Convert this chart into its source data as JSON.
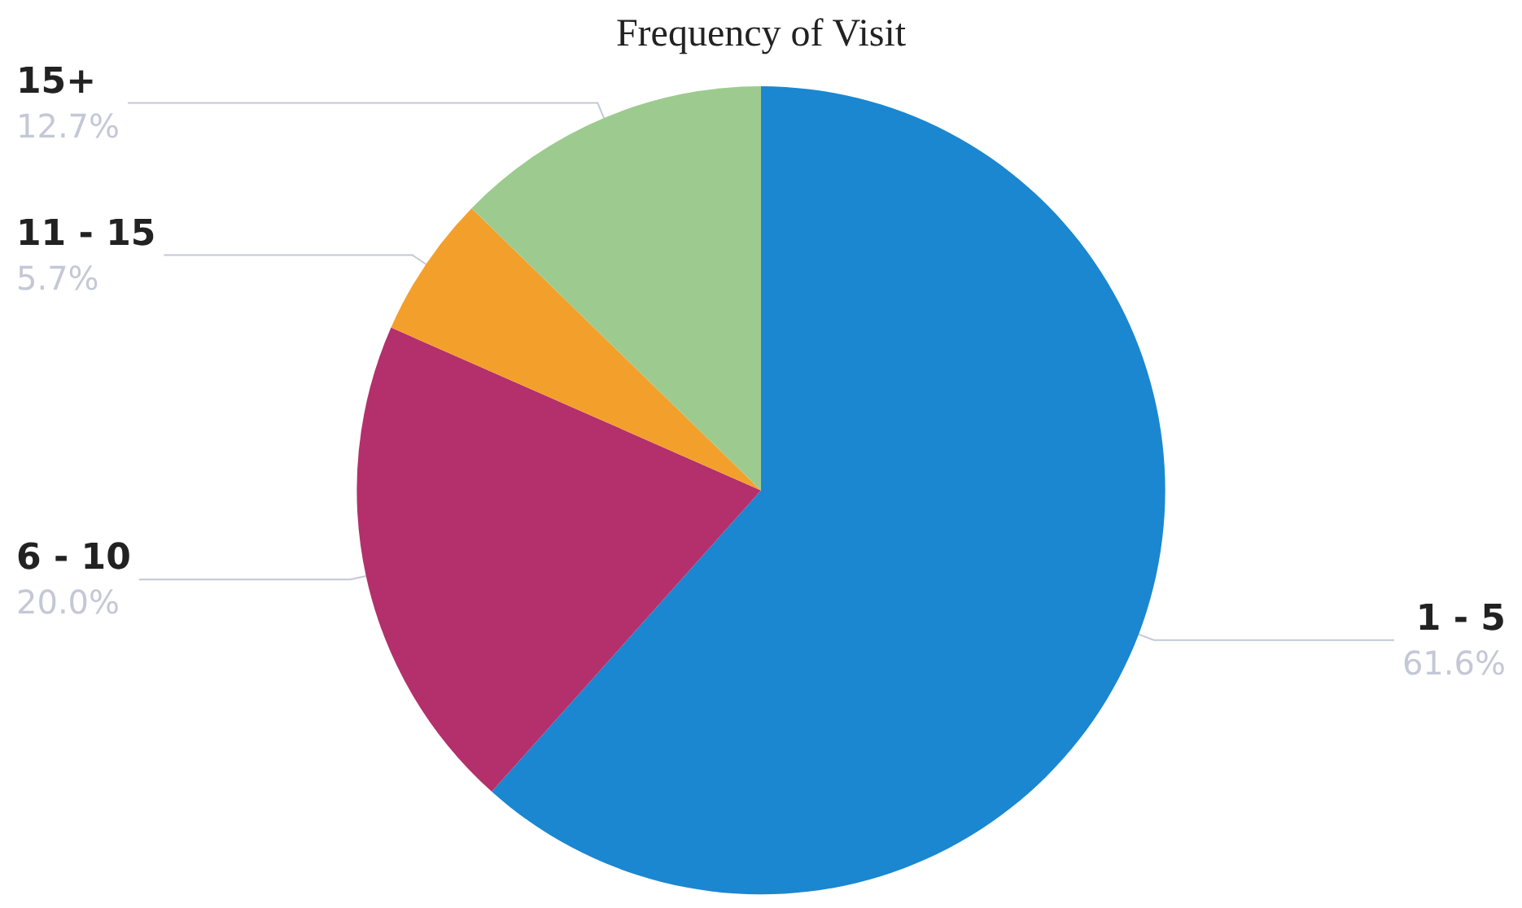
{
  "chart_data": {
    "type": "pie",
    "title": "Frequency of Visit",
    "categories": [
      "1 - 5",
      "6 - 10",
      "11 - 15",
      "15+"
    ],
    "values": [
      61.6,
      20.0,
      5.7,
      12.7
    ],
    "value_labels": [
      "61.6%",
      "20.0%",
      "5.7%",
      "12.7%"
    ],
    "colors": [
      "#1a87d0",
      "#b3306c",
      "#f39f2b",
      "#9dcb8f"
    ],
    "legend": false
  }
}
